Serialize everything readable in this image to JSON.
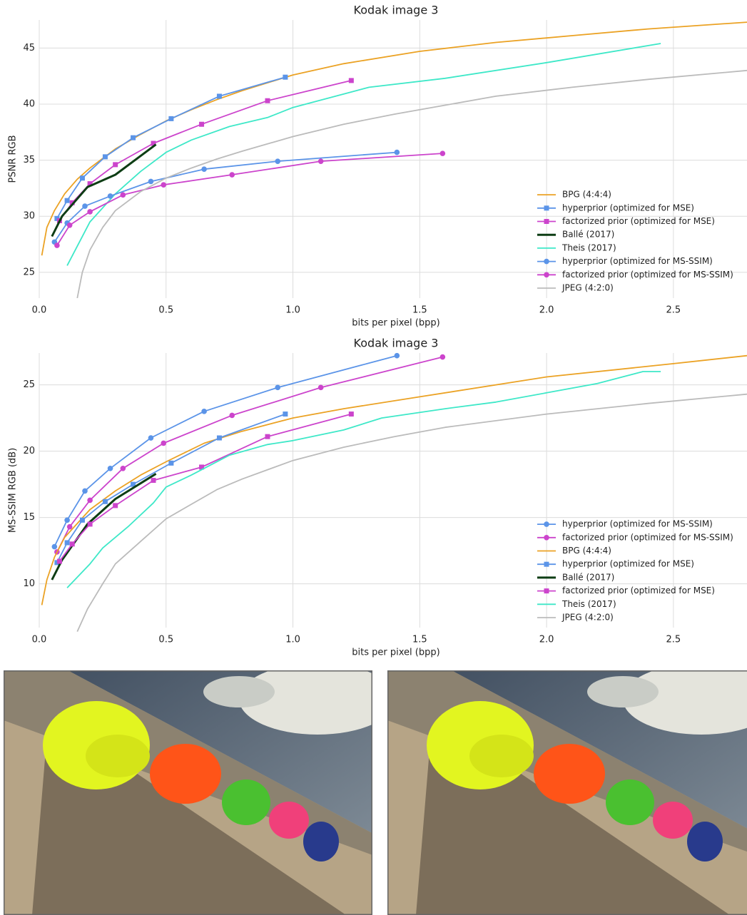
{
  "chart_data": [
    {
      "type": "line",
      "title": "Kodak image 3",
      "x_label": "bits per pixel (bpp)",
      "y_label": "PSNR RGB",
      "xlim": [
        0,
        2.79
      ],
      "ylim": [
        22.7,
        47.5
      ],
      "xticks": [
        {
          "value": 0,
          "label": "0.0"
        },
        0.5,
        {
          "value": 1,
          "label": "1.0"
        },
        1.5,
        {
          "value": 2,
          "label": "2.0"
        },
        2.5
      ],
      "yticks": [
        25,
        30,
        35,
        40,
        45
      ],
      "grid": true,
      "legend": "lower right",
      "series": [
        {
          "name": "BPG (4:4:4)",
          "color": "#eba224",
          "x": [
            0.01,
            0.03,
            0.06,
            0.1,
            0.15,
            0.2,
            0.3,
            0.4,
            0.5,
            0.6,
            0.7,
            0.8,
            1.0,
            1.2,
            1.5,
            1.8,
            2.1,
            2.4,
            2.79
          ],
          "values": [
            26.5,
            29,
            30.5,
            32,
            33.3,
            34.3,
            36,
            37.3,
            38.5,
            39.5,
            40.4,
            41.2,
            42.6,
            43.6,
            44.7,
            45.5,
            46.1,
            46.7,
            47.3
          ]
        },
        {
          "name": "hyperprior (optimized for MSE)",
          "color": "#5b94e8",
          "marker": "square",
          "x": [
            0.07,
            0.11,
            0.17,
            0.26,
            0.37,
            0.52,
            0.71,
            0.97
          ],
          "values": [
            29.8,
            31.4,
            33.4,
            35.3,
            37.0,
            38.7,
            40.7,
            42.4
          ]
        },
        {
          "name": "factorized prior (optimized for MSE)",
          "color": "#cc44cc",
          "marker": "square",
          "x": [
            0.08,
            0.13,
            0.2,
            0.3,
            0.45,
            0.64,
            0.9,
            1.23
          ],
          "values": [
            29.6,
            31.2,
            32.9,
            34.6,
            36.5,
            38.2,
            40.3,
            42.1
          ]
        },
        {
          "name": "Ballé (2017)",
          "color": "#0d3d14",
          "linewidth": 3,
          "x": [
            0.05,
            0.09,
            0.19,
            0.3,
            0.46
          ],
          "values": [
            28.2,
            30.0,
            32.6,
            33.7,
            36.4
          ]
        },
        {
          "name": "Theis (2017)",
          "color": "#3ee8c8",
          "x": [
            0.11,
            0.2,
            0.3,
            0.4,
            0.5,
            0.6,
            0.75,
            0.9,
            1.0,
            1.3,
            1.6,
            2.0,
            2.45
          ],
          "values": [
            25.6,
            29.5,
            32,
            34,
            35.7,
            36.8,
            38,
            38.8,
            39.7,
            41.5,
            42.3,
            43.7,
            45.4
          ]
        },
        {
          "name": "hyperprior (optimized for MS-SSIM)",
          "color": "#5b94e8",
          "marker": "circle",
          "x": [
            0.06,
            0.11,
            0.18,
            0.28,
            0.44,
            0.65,
            0.94,
            1.41
          ],
          "values": [
            27.7,
            29.4,
            30.9,
            31.8,
            33.1,
            34.2,
            34.9,
            35.7
          ]
        },
        {
          "name": "factorized prior (optimized for MS-SSIM)",
          "color": "#cc44cc",
          "marker": "circle",
          "x": [
            0.07,
            0.12,
            0.2,
            0.33,
            0.49,
            0.76,
            1.11,
            1.59
          ],
          "values": [
            27.4,
            29.2,
            30.4,
            31.9,
            32.8,
            33.7,
            34.9,
            35.6
          ]
        },
        {
          "name": "JPEG (4:2:0)",
          "color": "#bbbbbb",
          "x": [
            0.15,
            0.17,
            0.2,
            0.25,
            0.3,
            0.4,
            0.5,
            0.6,
            0.7,
            0.8,
            1.0,
            1.2,
            1.4,
            1.6,
            1.8,
            2.1,
            2.4,
            2.79
          ],
          "values": [
            22.7,
            25,
            27,
            29,
            30.5,
            32.2,
            33.4,
            34.3,
            35.1,
            35.8,
            37.1,
            38.2,
            39.1,
            39.9,
            40.7,
            41.5,
            42.2,
            43
          ]
        }
      ]
    },
    {
      "type": "line",
      "title": "Kodak image 3",
      "x_label": "bits per pixel (bpp)",
      "y_label": "MS-SSIM RGB (dB)",
      "xlim": [
        0,
        2.79
      ],
      "ylim": [
        6.7,
        27.4
      ],
      "xticks": [
        {
          "value": 0,
          "label": "0.0"
        },
        0.5,
        {
          "value": 1,
          "label": "1.0"
        },
        1.5,
        {
          "value": 2,
          "label": "2.0"
        },
        2.5
      ],
      "yticks": [
        10,
        15,
        20,
        25
      ],
      "grid": true,
      "legend": "lower right",
      "series": [
        {
          "name": "hyperprior (optimized for MS-SSIM)",
          "color": "#5b94e8",
          "marker": "circle",
          "x": [
            0.06,
            0.11,
            0.18,
            0.28,
            0.44,
            0.65,
            0.94,
            1.41
          ],
          "values": [
            12.8,
            14.8,
            17.0,
            18.7,
            21.0,
            23.0,
            24.8,
            27.2
          ]
        },
        {
          "name": "factorized prior (optimized for MS-SSIM)",
          "color": "#cc44cc",
          "marker": "circle",
          "x": [
            0.07,
            0.12,
            0.2,
            0.33,
            0.49,
            0.76,
            1.11,
            1.59
          ],
          "values": [
            12.4,
            14.3,
            16.3,
            18.7,
            20.6,
            22.7,
            24.8,
            27.1
          ]
        },
        {
          "name": "BPG (4:4:4)",
          "color": "#eba224",
          "x": [
            0.01,
            0.03,
            0.06,
            0.1,
            0.2,
            0.3,
            0.4,
            0.5,
            0.65,
            0.8,
            1.0,
            1.2,
            1.5,
            2.0,
            2.5,
            2.79
          ],
          "values": [
            8.4,
            10.3,
            12,
            13.5,
            15.6,
            17,
            18.2,
            19.2,
            20.6,
            21.5,
            22.5,
            23.2,
            24.1,
            25.6,
            26.6,
            27.2
          ]
        },
        {
          "name": "hyperprior (optimized for MSE)",
          "color": "#5b94e8",
          "marker": "square",
          "x": [
            0.07,
            0.11,
            0.17,
            0.26,
            0.37,
            0.52,
            0.71,
            0.97
          ],
          "values": [
            11.6,
            13.1,
            14.8,
            16.2,
            17.5,
            19.1,
            21.0,
            22.8
          ]
        },
        {
          "name": "Ballé (2017)",
          "color": "#0d3d14",
          "linewidth": 3,
          "x": [
            0.05,
            0.09,
            0.19,
            0.3,
            0.46
          ],
          "values": [
            10.3,
            11.8,
            14.5,
            16.4,
            18.3
          ]
        },
        {
          "name": "factorized prior (optimized for MSE)",
          "color": "#cc44cc",
          "marker": "square",
          "x": [
            0.08,
            0.13,
            0.2,
            0.3,
            0.45,
            0.64,
            0.9,
            1.23
          ],
          "values": [
            11.7,
            13.0,
            14.5,
            15.9,
            17.8,
            18.8,
            21.1,
            22.8
          ]
        },
        {
          "name": "Theis (2017)",
          "color": "#3ee8c8",
          "x": [
            0.11,
            0.2,
            0.25,
            0.35,
            0.45,
            0.5,
            0.6,
            0.75,
            0.9,
            1.0,
            1.2,
            1.35,
            1.6,
            1.8,
            2.0,
            2.2,
            2.38,
            2.45
          ],
          "values": [
            9.7,
            11.5,
            12.7,
            14.3,
            16.1,
            17.3,
            18.2,
            19.7,
            20.5,
            20.8,
            21.6,
            22.5,
            23.2,
            23.7,
            24.4,
            25.1,
            26,
            26
          ]
        },
        {
          "name": "JPEG (4:2:0)",
          "color": "#bbbbbb",
          "x": [
            0.15,
            0.19,
            0.25,
            0.3,
            0.4,
            0.5,
            0.6,
            0.7,
            0.8,
            1.0,
            1.2,
            1.4,
            1.6,
            2.0,
            2.4,
            2.79
          ],
          "values": [
            6.4,
            8.1,
            10,
            11.5,
            13.2,
            14.9,
            16,
            17.1,
            17.9,
            19.3,
            20.3,
            21.1,
            21.8,
            22.8,
            23.6,
            24.3
          ]
        }
      ]
    }
  ]
}
